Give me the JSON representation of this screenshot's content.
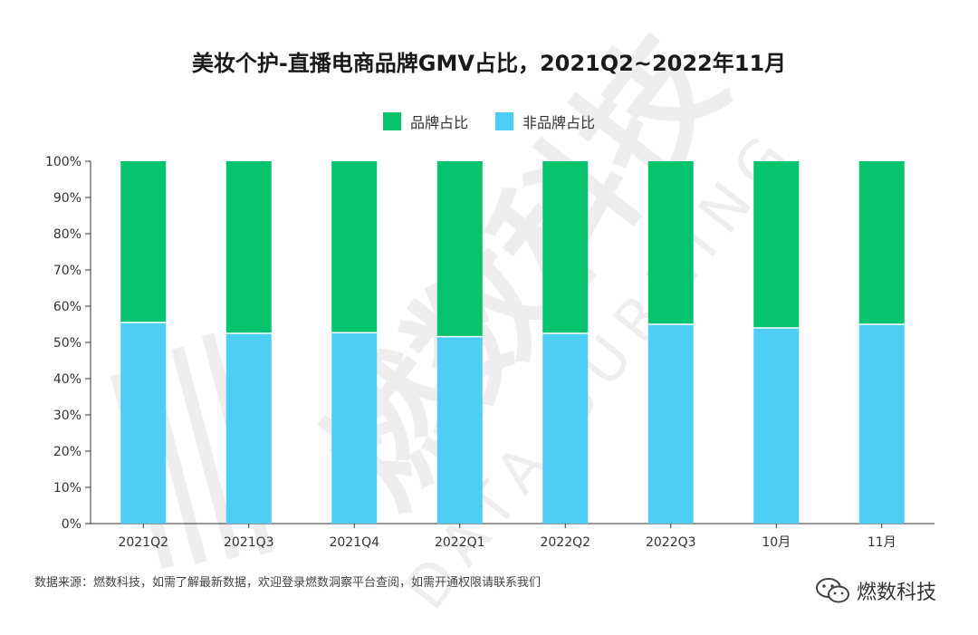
{
  "chart_data": {
    "type": "bar",
    "stacked": true,
    "title": "美妆个护-直播电商品牌GMV占比，2021Q2~2022年11月",
    "categories": [
      "2021Q2",
      "2021Q3",
      "2021Q4",
      "2022Q1",
      "2022Q2",
      "2022Q3",
      "10月",
      "11月"
    ],
    "series": [
      {
        "name": "非品牌占比",
        "color": "#4ecdf5",
        "values": [
          55.5,
          52.5,
          52.7,
          51.6,
          52.5,
          55.0,
          54.0,
          55.0
        ]
      },
      {
        "name": "品牌占比",
        "color": "#06c46d",
        "values": [
          44.5,
          47.5,
          47.3,
          48.4,
          47.5,
          45.0,
          46.0,
          45.0
        ]
      }
    ],
    "legend_order": [
      "品牌占比",
      "非品牌占比"
    ],
    "ylim": [
      0,
      100
    ],
    "yticks": [
      "0%",
      "10%",
      "20%",
      "30%",
      "40%",
      "50%",
      "60%",
      "70%",
      "80%",
      "90%",
      "100%"
    ],
    "xlabel": "",
    "ylabel": "",
    "legend_position": "top-center"
  },
  "footer": {
    "source": "数据来源：燃数科技，如需了解最新数据，欢迎登录燃数洞察平台查阅，如需开通权限请联系我们",
    "brand": "燃数科技"
  },
  "watermark": {
    "cn": "燃数科技",
    "en": "DATA BURNING"
  },
  "colors": {
    "axis": "#333333",
    "text": "#333333"
  }
}
